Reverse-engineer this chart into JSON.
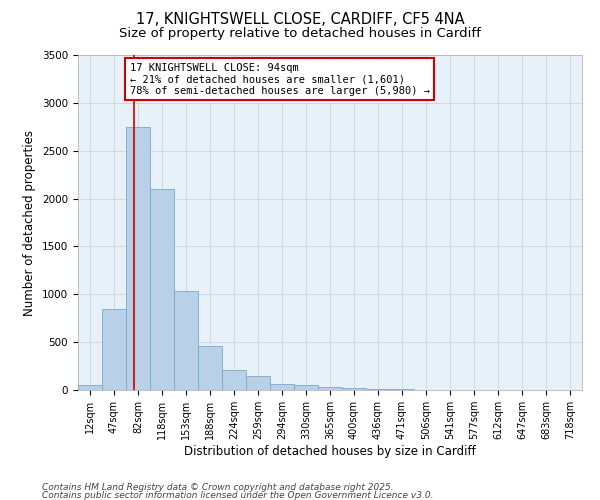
{
  "title_line1": "17, KNIGHTSWELL CLOSE, CARDIFF, CF5 4NA",
  "title_line2": "Size of property relative to detached houses in Cardiff",
  "xlabel": "Distribution of detached houses by size in Cardiff",
  "ylabel": "Number of detached properties",
  "categories": [
    "12sqm",
    "47sqm",
    "82sqm",
    "118sqm",
    "153sqm",
    "188sqm",
    "224sqm",
    "259sqm",
    "294sqm",
    "330sqm",
    "365sqm",
    "400sqm",
    "436sqm",
    "471sqm",
    "506sqm",
    "541sqm",
    "577sqm",
    "612sqm",
    "647sqm",
    "683sqm",
    "718sqm"
  ],
  "values": [
    50,
    850,
    2750,
    2100,
    1030,
    460,
    210,
    150,
    65,
    50,
    35,
    20,
    15,
    10,
    5,
    3,
    2,
    2,
    1,
    1,
    1
  ],
  "bar_color": "#b8d0e8",
  "bar_edge_color": "#7aaac8",
  "grid_color": "#c8dce8",
  "background_color": "#e8f0f8",
  "red_line_color": "#cc0000",
  "annotation_text": "17 KNIGHTSWELL CLOSE: 94sqm\n← 21% of detached houses are smaller (1,601)\n78% of semi-detached houses are larger (5,980) →",
  "annotation_box_color": "#ffffff",
  "annotation_edge_color": "#cc0000",
  "ylim": [
    0,
    3500
  ],
  "yticks": [
    0,
    500,
    1000,
    1500,
    2000,
    2500,
    3000,
    3500
  ],
  "footnote_line1": "Contains HM Land Registry data © Crown copyright and database right 2025.",
  "footnote_line2": "Contains public sector information licensed under the Open Government Licence v3.0.",
  "title_fontsize": 10.5,
  "subtitle_fontsize": 9.5,
  "axis_label_fontsize": 8.5,
  "tick_fontsize": 7,
  "annotation_fontsize": 7.5,
  "footnote_fontsize": 6.5
}
